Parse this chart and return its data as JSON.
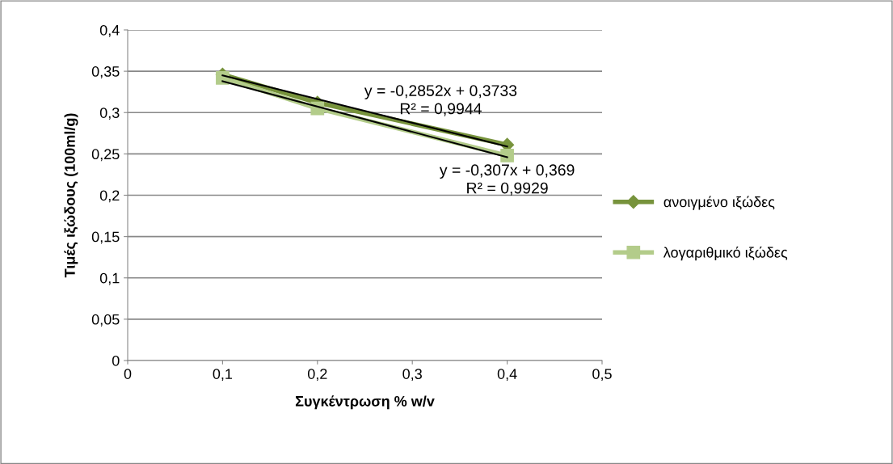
{
  "chart_data": {
    "type": "line",
    "xlabel": "Συγκέντρωση % w/v",
    "ylabel": "Τιμές ιξώδους (100ml/g)",
    "xlim": [
      0,
      0.5
    ],
    "xticks": [
      {
        "value": 0,
        "label": "0"
      },
      {
        "value": 0.1,
        "label": "0,1"
      },
      {
        "value": 0.2,
        "label": "0,2"
      },
      {
        "value": 0.3,
        "label": "0,3"
      },
      {
        "value": 0.4,
        "label": "0,4"
      },
      {
        "value": 0.5,
        "label": "0,5"
      }
    ],
    "ylim": [
      0,
      0.4
    ],
    "yticks": [
      {
        "value": 0,
        "label": "0"
      },
      {
        "value": 0.05,
        "label": "0,05"
      },
      {
        "value": 0.1,
        "label": "0,1"
      },
      {
        "value": 0.15,
        "label": "0,15"
      },
      {
        "value": 0.2,
        "label": "0,2"
      },
      {
        "value": 0.25,
        "label": "0,25"
      },
      {
        "value": 0.3,
        "label": "0,3"
      },
      {
        "value": 0.35,
        "label": "0,35"
      },
      {
        "value": 0.4,
        "label": "0,4"
      }
    ],
    "grid": "y",
    "legend": "right",
    "series": [
      {
        "name": "ανοιγμένο ιξώδες",
        "color": "#77933c",
        "marker": "diamond",
        "x": [
          0.1,
          0.2,
          0.4
        ],
        "values": [
          0.346,
          0.312,
          0.261
        ]
      },
      {
        "name": "λογαριθμικό ιξώδες",
        "color": "#b3cc8a",
        "marker": "square",
        "x": [
          0.1,
          0.2,
          0.4
        ],
        "values": [
          0.342,
          0.305,
          0.248
        ]
      },
      {
        "color": "#000000",
        "marker": "none",
        "x": [
          0.1,
          0.4
        ],
        "values": [
          0.345,
          0.259
        ]
      },
      {
        "color": "#000000",
        "marker": "none",
        "x": [
          0.1,
          0.4
        ],
        "values": [
          0.338,
          0.246
        ]
      }
    ],
    "annotations": [
      "y = -0,2852x + 0,3733\nR² = 0,9944",
      "y = -0,307x + 0,369\nR² = 0,9929"
    ]
  }
}
